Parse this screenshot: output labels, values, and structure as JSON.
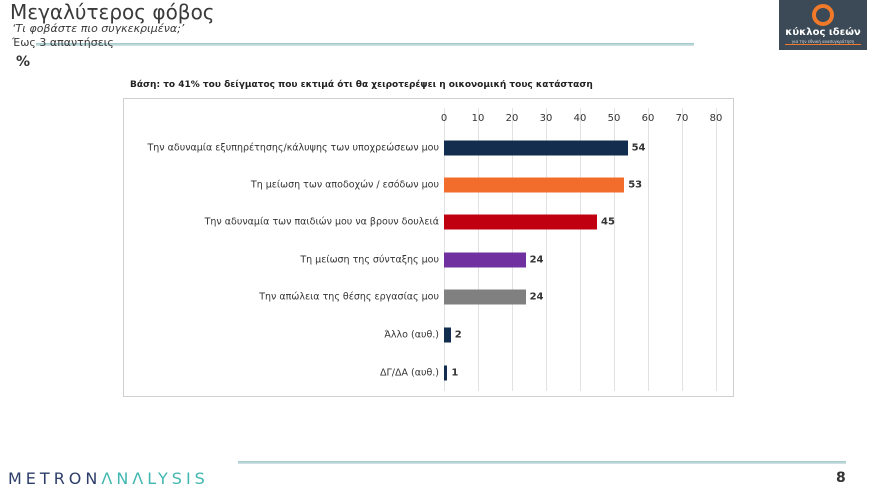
{
  "header": {
    "title": "Μεγαλύτερος φόβος",
    "subtitle": "‘Τι φοβάστε πιο συγκεκριμένα;’",
    "note": "Έως 3 απαντήσεις",
    "unit": "%"
  },
  "logo": {
    "name": "κύκλος ιδεών",
    "tagline": "για την εθνική ανασυγκρότηση"
  },
  "footer": {
    "brand_a": "METRON",
    "brand_b": "ΛNΛLYSIS",
    "page": "8"
  },
  "chart_data": {
    "type": "bar",
    "orientation": "horizontal",
    "title": "Βάση: το 41% του δείγματος που εκτιμά ότι θα χειροτερέψει η οικονομική τους κατάσταση",
    "xlim": [
      0,
      80
    ],
    "xticks": [
      0,
      10,
      20,
      30,
      40,
      50,
      60,
      70,
      80
    ],
    "grid": true,
    "categories": [
      "Την αδυναμία εξυπηρέτησης/κάλυψης  των υποχρεώσεων μου",
      "Τη μείωση των αποδοχών / εσόδων μου",
      "Την αδυναμία των παιδιών μου να βρουν δουλειά",
      "Τη μείωση της σύνταξης μου",
      "Την απώλεια της θέσης εργασίας μου",
      "Άλλο (αυθ.)",
      "ΔΓ/ΔΑ (αυθ.)"
    ],
    "values": [
      54,
      53,
      45,
      24,
      24,
      2,
      1
    ],
    "colors": [
      "#132d4f",
      "#f26d2c",
      "#c00010",
      "#7030a0",
      "#808080",
      "#132d4f",
      "#132d4f"
    ]
  }
}
